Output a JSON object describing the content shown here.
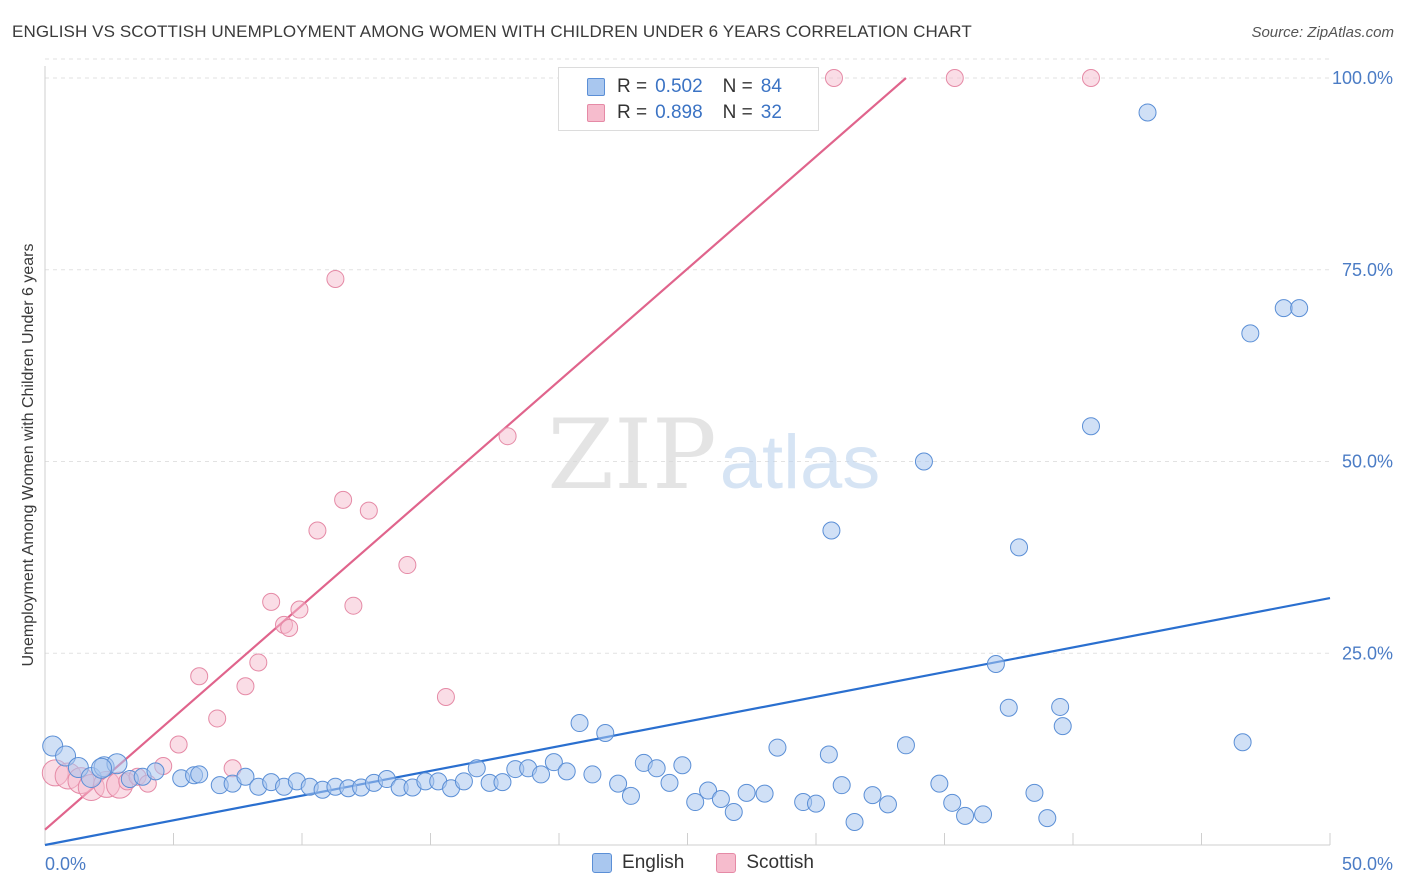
{
  "header": {
    "title": "ENGLISH VS SCOTTISH UNEMPLOYMENT AMONG WOMEN WITH CHILDREN UNDER 6 YEARS CORRELATION CHART",
    "source": "Source: ZipAtlas.com"
  },
  "watermark": {
    "zip": "ZIP",
    "atlas": "atlas"
  },
  "legend": {
    "english": {
      "r_label": "R =",
      "r_value": "0.502",
      "n_label": "N =",
      "n_value": "84"
    },
    "scottish": {
      "r_label": "R =",
      "r_value": "0.898",
      "n_label": "N =",
      "n_value": "32"
    }
  },
  "bottom_legend": {
    "english": "English",
    "scottish": "Scottish"
  },
  "colors": {
    "english_fill": "#a9c7ef",
    "english_stroke": "#5b8fd6",
    "english_line": "#2a6fcf",
    "scottish_fill": "#f6bccd",
    "scottish_stroke": "#e58aa6",
    "scottish_line": "#e0648c",
    "tick_text": "#4b7cc5",
    "grid": "#e2e2e2"
  },
  "chart_data": {
    "type": "scatter",
    "title": "ENGLISH VS SCOTTISH UNEMPLOYMENT AMONG WOMEN WITH CHILDREN UNDER 6 YEARS CORRELATION CHART",
    "xlabel": "",
    "ylabel": "Unemployment Among Women with Children Under 6 years",
    "xlim": [
      0,
      50
    ],
    "ylim": [
      0,
      100
    ],
    "x_tick_labels": [
      "0.0%",
      "50.0%"
    ],
    "y_ticks": [
      25,
      50,
      75,
      100
    ],
    "y_tick_labels": [
      "25.0%",
      "50.0%",
      "75.0%",
      "100.0%"
    ],
    "grid": true,
    "series": [
      {
        "name": "English",
        "points": [
          [
            0.3,
            12.9
          ],
          [
            0.8,
            11.6
          ],
          [
            1.3,
            10.1
          ],
          [
            1.8,
            8.8
          ],
          [
            2.3,
            10.2
          ],
          [
            2.8,
            10.6
          ],
          [
            3.3,
            8.6
          ],
          [
            3.8,
            8.9
          ],
          [
            4.3,
            9.6
          ],
          [
            5.3,
            8.7
          ],
          [
            5.8,
            9.1
          ],
          [
            6.8,
            7.8
          ],
          [
            7.3,
            8.0
          ],
          [
            7.8,
            8.9
          ],
          [
            8.3,
            7.6
          ],
          [
            8.8,
            8.2
          ],
          [
            9.3,
            7.6
          ],
          [
            9.8,
            8.3
          ],
          [
            10.3,
            7.6
          ],
          [
            10.8,
            7.2
          ],
          [
            11.3,
            7.6
          ],
          [
            11.8,
            7.4
          ],
          [
            12.3,
            7.5
          ],
          [
            12.8,
            8.1
          ],
          [
            13.3,
            8.6
          ],
          [
            13.8,
            7.5
          ],
          [
            14.3,
            7.5
          ],
          [
            14.8,
            8.3
          ],
          [
            15.3,
            8.3
          ],
          [
            15.8,
            7.4
          ],
          [
            16.3,
            8.3
          ],
          [
            16.8,
            10.0
          ],
          [
            17.3,
            8.1
          ],
          [
            17.8,
            8.2
          ],
          [
            18.3,
            9.9
          ],
          [
            18.8,
            10.0
          ],
          [
            19.3,
            9.2
          ],
          [
            19.8,
            10.8
          ],
          [
            20.3,
            9.6
          ],
          [
            20.8,
            15.9
          ],
          [
            21.3,
            9.2
          ],
          [
            21.8,
            14.6
          ],
          [
            22.3,
            8.0
          ],
          [
            22.8,
            6.4
          ],
          [
            23.3,
            10.7
          ],
          [
            23.8,
            10.0
          ],
          [
            24.3,
            8.1
          ],
          [
            24.8,
            10.4
          ],
          [
            25.3,
            5.6
          ],
          [
            25.8,
            7.1
          ],
          [
            26.3,
            6.0
          ],
          [
            26.8,
            4.3
          ],
          [
            27.3,
            6.8
          ],
          [
            28.0,
            6.7
          ],
          [
            28.5,
            12.7
          ],
          [
            29.5,
            5.6
          ],
          [
            30.0,
            5.4
          ],
          [
            30.5,
            11.8
          ],
          [
            31.0,
            7.8
          ],
          [
            31.5,
            3.0
          ],
          [
            32.2,
            6.5
          ],
          [
            32.8,
            5.3
          ],
          [
            33.5,
            13.0
          ],
          [
            34.2,
            50.0
          ],
          [
            34.8,
            8.0
          ],
          [
            35.3,
            5.5
          ],
          [
            35.8,
            3.8
          ],
          [
            36.5,
            4.0
          ],
          [
            37.0,
            23.6
          ],
          [
            37.5,
            17.9
          ],
          [
            37.9,
            38.8
          ],
          [
            38.5,
            6.8
          ],
          [
            39.0,
            3.5
          ],
          [
            39.5,
            18.0
          ],
          [
            39.6,
            15.5
          ],
          [
            40.7,
            54.6
          ],
          [
            42.9,
            95.5
          ],
          [
            46.6,
            13.4
          ],
          [
            46.9,
            66.7
          ],
          [
            48.2,
            70.0
          ],
          [
            48.8,
            70.0
          ],
          [
            30.6,
            41.0
          ],
          [
            2.2,
            10.0
          ],
          [
            6.0,
            9.2
          ]
        ]
      },
      {
        "name": "Scottish",
        "points": [
          [
            0.4,
            9.4
          ],
          [
            0.9,
            9.0
          ],
          [
            1.4,
            8.4
          ],
          [
            1.8,
            7.5
          ],
          [
            2.4,
            7.9
          ],
          [
            2.9,
            7.8
          ],
          [
            3.2,
            8.3
          ],
          [
            3.6,
            8.9
          ],
          [
            4.0,
            8.0
          ],
          [
            4.6,
            10.3
          ],
          [
            5.2,
            13.1
          ],
          [
            6.0,
            22.0
          ],
          [
            6.7,
            16.5
          ],
          [
            7.3,
            10.0
          ],
          [
            7.8,
            20.7
          ],
          [
            8.3,
            23.8
          ],
          [
            8.8,
            31.7
          ],
          [
            9.3,
            28.7
          ],
          [
            9.5,
            28.3
          ],
          [
            9.9,
            30.7
          ],
          [
            10.6,
            41.0
          ],
          [
            11.3,
            73.8
          ],
          [
            11.6,
            45.0
          ],
          [
            12.0,
            31.2
          ],
          [
            12.6,
            43.6
          ],
          [
            14.1,
            36.5
          ],
          [
            15.6,
            19.3
          ],
          [
            18.0,
            53.3
          ],
          [
            25.8,
            100.0
          ],
          [
            30.7,
            100.0
          ],
          [
            35.4,
            100.0
          ],
          [
            40.7,
            100.0
          ]
        ]
      }
    ],
    "trend_lines": [
      {
        "name": "English",
        "from": [
          0,
          0
        ],
        "to": [
          50,
          32.2
        ]
      },
      {
        "name": "Scottish",
        "from": [
          0,
          2.0
        ],
        "to": [
          33.5,
          100
        ]
      }
    ]
  }
}
